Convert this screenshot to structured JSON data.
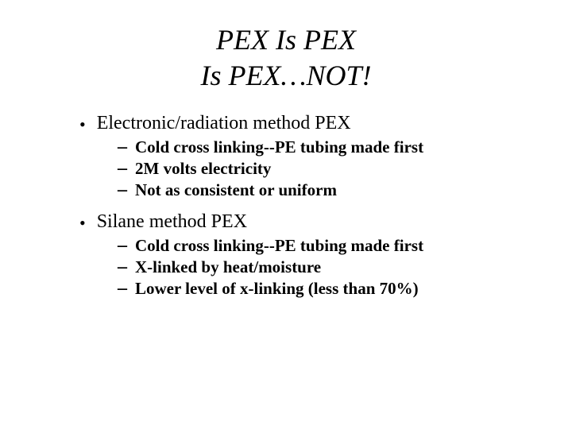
{
  "colors": {
    "background": "#ffffff",
    "text": "#000000"
  },
  "typography": {
    "title_fontsize": 36,
    "title_style": "italic",
    "top_fontsize": 24,
    "sub_fontsize": 21,
    "sub_weight": "bold",
    "font_family": "Georgia, Times New Roman, serif"
  },
  "title_line1": "PEX Is PEX",
  "title_line2": "Is PEX…NOT!",
  "bullets": [
    {
      "label": "Electronic/radiation method PEX",
      "subs": [
        "Cold cross linking--PE tubing made first",
        "2M volts electricity",
        "Not as consistent or uniform"
      ]
    },
    {
      "label": "Silane method PEX",
      "subs": [
        "Cold cross linking--PE tubing made first",
        "X-linked by heat/moisture",
        "Lower level of x-linking (less than 70%)"
      ]
    }
  ]
}
